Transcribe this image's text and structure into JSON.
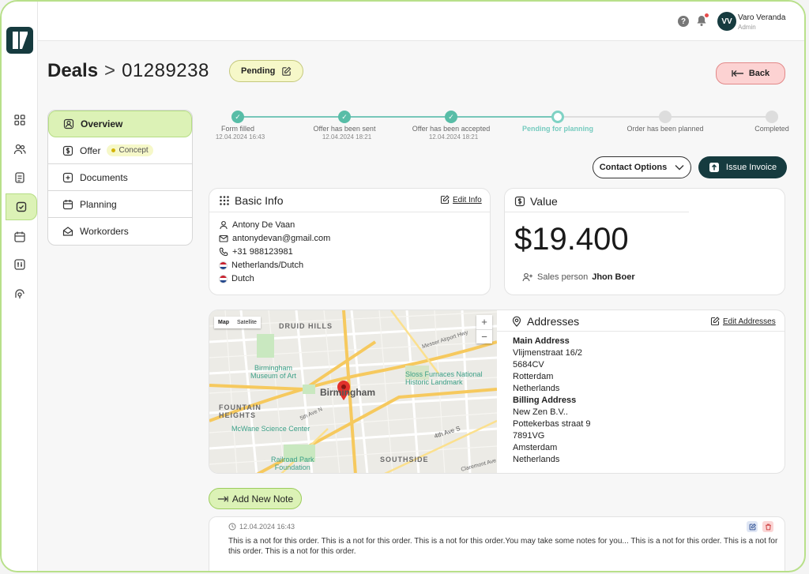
{
  "user": {
    "initials": "VV",
    "name": "Varo Veranda",
    "role": "Admin"
  },
  "header": {
    "help": "?"
  },
  "title": {
    "section": "Deals",
    "separator": ">",
    "deal_number": "01289238"
  },
  "status": {
    "label": "Pending"
  },
  "back": {
    "label": "Back"
  },
  "tabs": [
    {
      "label": "Overview"
    },
    {
      "label": "Offer",
      "badge": "Concept"
    },
    {
      "label": "Documents"
    },
    {
      "label": "Planning"
    },
    {
      "label": "Workorders"
    }
  ],
  "progress": {
    "steps": [
      {
        "label": "Form filled",
        "date": "12.04.2024  16:43",
        "state": "done"
      },
      {
        "label": "Offer has been sent",
        "date": "12.04.2024  18:21",
        "state": "done"
      },
      {
        "label": "Offer has been accepted",
        "date": "12.04.2024  18:21",
        "state": "done"
      },
      {
        "label": "Pending for planning",
        "date": "",
        "state": "current"
      },
      {
        "label": "Order has been planned",
        "date": "",
        "state": "todo"
      },
      {
        "label": "Completed",
        "date": "",
        "state": "todo"
      }
    ]
  },
  "actions": {
    "contact": "Contact Options",
    "invoice": "Issue Invoice"
  },
  "basic_info": {
    "title": "Basic Info",
    "edit": "Edit Info",
    "name": "Antony De Vaan",
    "email": "antonydevan@gmail.com",
    "phone": "+31 988123981",
    "nationality": "Netherlands/Dutch",
    "language": "Dutch"
  },
  "value": {
    "title": "Value",
    "currency_icon": "$",
    "amount": "$19.400",
    "salesperson_label": "Sales person",
    "salesperson_name": "Jhon Boer"
  },
  "map": {
    "map_tab": "Map",
    "satellite_tab": "Satellite",
    "zoom_in": "+",
    "zoom_out": "−",
    "labels": {
      "druid_hills": "DRUID HILLS",
      "museum": "Birmingham\nMuseum of Art",
      "city": "Birmingham",
      "sloss": "Sloss Furnaces National\nHistoric Landmark",
      "fountain": "FOUNTAIN\nHEIGHTS",
      "mcwane": "McWane Science Center",
      "railroad": "Railroad Park\nFoundation",
      "southside": "SOUTHSIDE",
      "messer": "Messer Airport Hwy",
      "fifth_ave": "5th Ave N",
      "fourth_ave": "4th Ave S",
      "claremont": "Claremont Ave"
    }
  },
  "addresses": {
    "title": "Addresses",
    "edit": "Edit Addresses",
    "main_title": "Main Address",
    "main_lines": [
      "Vlijmenstraat 16/2",
      "5684CV",
      "Rotterdam",
      "Netherlands"
    ],
    "billing_title": "Billing Address",
    "billing_lines": [
      "New Zen B.V..",
      "Pottekerbas straat 9",
      "7891VG",
      "Amsterdam",
      "Netherlands"
    ]
  },
  "notes": {
    "add_label": "Add New Note",
    "items": [
      {
        "date": "12.04.2024  16:43",
        "text": "This is a not for this order. This is a not for this order. This is a not for this order.You may take some notes for you... This is a not for this order. This is a not for this order. This is a not for this order."
      }
    ]
  },
  "colors": {
    "brand": "#163b3f",
    "accent_green": "#dcf2b6",
    "progress": "#58bda7",
    "danger": "#fcd2d2"
  }
}
